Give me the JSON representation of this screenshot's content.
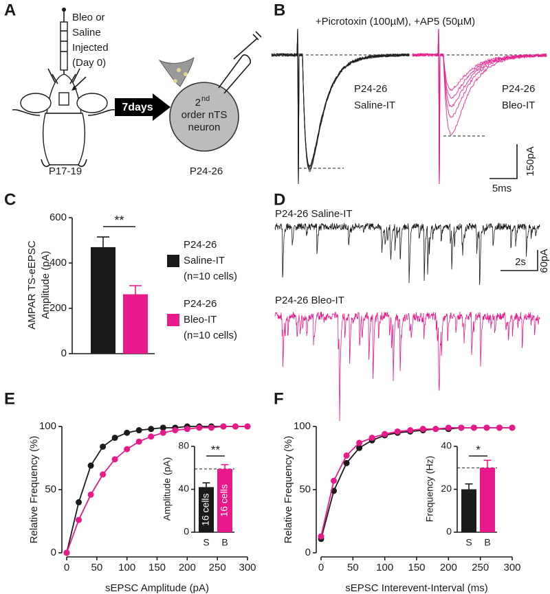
{
  "panel_labels": [
    "A",
    "B",
    "C",
    "D",
    "E",
    "F"
  ],
  "diagram": {
    "injection_lines": [
      "Bleo or",
      "Saline",
      "Injected",
      "(Day 0)"
    ],
    "start_age": "P17-19",
    "arrow_label": "7days",
    "neuron_ordinal": "2",
    "neuron_ordinal_suffix": "nd",
    "neuron_lines": [
      "order nTS",
      "neuron"
    ],
    "end_age": "P24-26"
  },
  "evoked_traces": {
    "title": "+Picrotoxin (100µM), +AP5 (50µM)",
    "saline_label": [
      "P24-26",
      "Saline-IT"
    ],
    "bleo_label": [
      "P24-26",
      "Bleo-IT"
    ],
    "scale_y": "150pA",
    "scale_x": "5ms"
  },
  "spontaneous_traces": {
    "saline_label": "P24-26 Saline-IT",
    "bleo_label": "P24-26 Bleo-IT",
    "scale_x": "2s",
    "scale_y": "60pA"
  },
  "chart_data": [
    {
      "type": "bar",
      "ylabel": [
        "AMPAR TS-eEPSC",
        "Amplitude (pA)"
      ],
      "values": [
        470,
        262
      ],
      "errors": [
        45,
        38
      ],
      "colors": [
        "#1a1a1a",
        "#e8198b"
      ],
      "ylim": [
        0,
        600
      ],
      "yticks": [
        0,
        200,
        400,
        600
      ],
      "significance": "**",
      "legend": [
        [
          "P24-26",
          "Saline-IT",
          "(n=10 cells)"
        ],
        [
          "P24-26",
          "Bleo-IT",
          "(n=10 cells)"
        ]
      ]
    },
    {
      "type": "line",
      "xlabel": "sEPSC Amplitude (pA)",
      "ylabel": "Relative Frequency (%)",
      "x": [
        0,
        20,
        40,
        60,
        80,
        100,
        120,
        140,
        160,
        180,
        200,
        220,
        240,
        260,
        280,
        300
      ],
      "series": [
        {
          "color": "#1a1a1a",
          "values": [
            0,
            40,
            69,
            84,
            91,
            95,
            97,
            98,
            99,
            99,
            100,
            100,
            100,
            100,
            100,
            100
          ]
        },
        {
          "color": "#e8198b",
          "values": [
            0,
            26,
            46,
            62,
            74,
            82,
            88,
            92,
            95,
            97,
            98,
            99,
            99,
            100,
            100,
            100
          ]
        }
      ],
      "xlim": [
        0,
        300
      ],
      "xticks": [
        0,
        50,
        100,
        150,
        200,
        250,
        300
      ],
      "ylim": [
        0,
        100
      ],
      "yticks": [
        0,
        50,
        100
      ]
    },
    {
      "type": "line",
      "xlabel": "sEPSC Interevent-Interval (ms)",
      "ylabel": "Relative Frequency (%)",
      "x": [
        0,
        20,
        40,
        60,
        80,
        100,
        120,
        140,
        160,
        180,
        200,
        220,
        240,
        260,
        280,
        300
      ],
      "series": [
        {
          "color": "#1a1a1a",
          "values": [
            11,
            49,
            71,
            83,
            89,
            93,
            95,
            96,
            97,
            98,
            98,
            99,
            99,
            99,
            99,
            99
          ]
        },
        {
          "color": "#e8198b",
          "values": [
            13,
            57,
            77,
            87,
            91,
            94,
            96,
            97,
            98,
            98,
            99,
            99,
            99,
            99,
            99,
            99
          ]
        }
      ],
      "xlim": [
        0,
        300
      ],
      "xticks": [
        0,
        50,
        100,
        150,
        200,
        250,
        300
      ],
      "ylim": [
        0,
        100
      ],
      "yticks": [
        0,
        50,
        100
      ]
    },
    {
      "type": "bar",
      "ylabel": "Amplitude (pA)",
      "categories": [
        "S",
        "B"
      ],
      "values": [
        42,
        59
      ],
      "errors": [
        4,
        4
      ],
      "colors": [
        "#1a1a1a",
        "#e8198b"
      ],
      "bar_labels": [
        "16 cells",
        "16 cells"
      ],
      "ylim": [
        0,
        80
      ],
      "yticks": [
        0,
        40,
        80
      ],
      "reference_line": 59,
      "significance": "**"
    },
    {
      "type": "bar",
      "ylabel": "Frequency (Hz)",
      "categories": [
        "S",
        "B"
      ],
      "values": [
        20,
        30
      ],
      "errors": [
        2.5,
        3.5
      ],
      "colors": [
        "#1a1a1a",
        "#e8198b"
      ],
      "ylim": [
        0,
        40
      ],
      "yticks": [
        0,
        20,
        40
      ],
      "reference_line": 30,
      "significance": "*"
    }
  ]
}
